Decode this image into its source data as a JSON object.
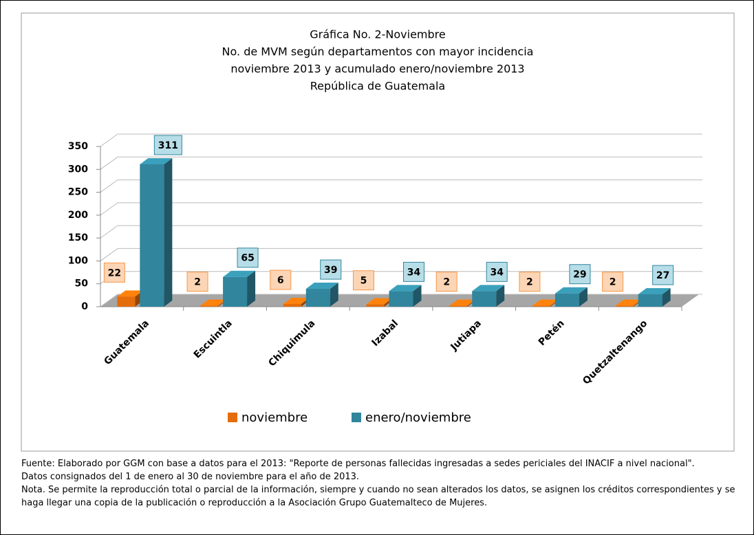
{
  "chart_data": {
    "type": "bar3d",
    "title": [
      "Gráfica No. 2-Noviembre",
      "No. de MVM según departamentos con mayor incidencia",
      "noviembre 2013 y acumulado enero/noviembre 2013",
      "República de Guatemala"
    ],
    "categories": [
      "Guatemala",
      "Escuintla",
      "Chiquimula",
      "Izabal",
      "Jutiapa",
      "Petén",
      "Quetzaltenango"
    ],
    "series": [
      {
        "name": "noviembre",
        "color": "#e46c0a",
        "values": [
          22,
          2,
          6,
          5,
          2,
          2,
          2
        ]
      },
      {
        "name": "enero/noviembre",
        "color": "#31859c",
        "values": [
          311,
          65,
          39,
          34,
          34,
          29,
          27
        ]
      }
    ],
    "ylim": [
      0,
      350
    ],
    "yticks": [
      0,
      50,
      100,
      150,
      200,
      250,
      300,
      350
    ],
    "grid": true,
    "legend": "bottom"
  },
  "footer": [
    "Fuente: Elaborado por GGM con base a datos para el 2013: \"Reporte de personas fallecidas ingresadas a sedes periciales del INACIF a nivel nacional\".",
    "Datos consignados del 1 de enero al 30 de noviembre para el año de 2013.",
    "Nota. Se permite la reproducción total o parcial de la información, siempre y cuando no sean alterados los datos,  se asignen los créditos correspondientes y se haga llegar una copia de la publicación o reproducción a la Asociación Grupo Guatemalteco de Mujeres."
  ]
}
